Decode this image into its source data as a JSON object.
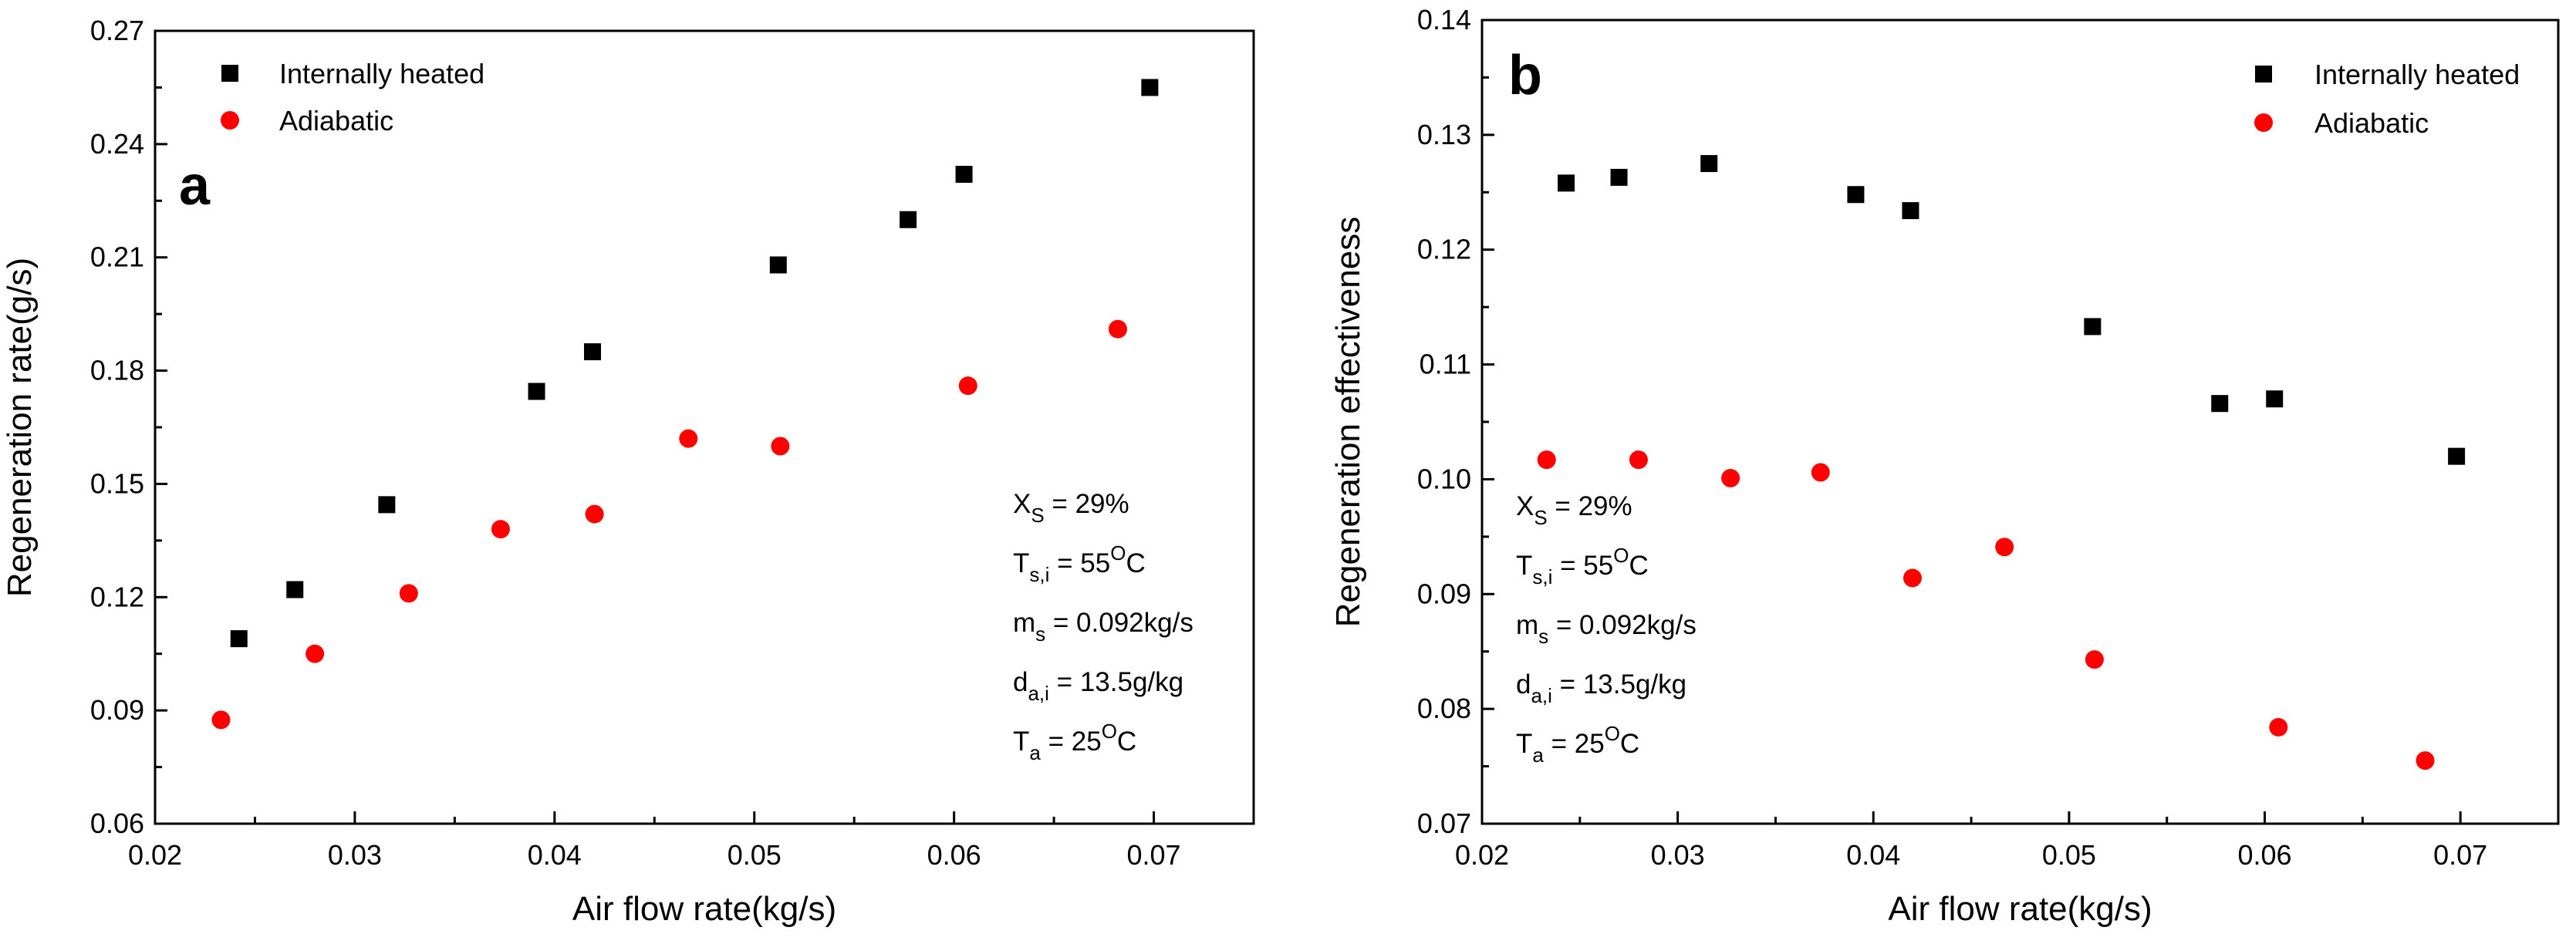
{
  "colors": {
    "internally_heated": "#000000",
    "adiabatic": "#ff0000"
  },
  "chart_data": [
    {
      "type": "scatter",
      "panel_label": "a",
      "xlabel": "Air flow rate(kg/s)",
      "ylabel": "Regeneration rate(g/s)",
      "xlim": [
        0.02,
        0.075
      ],
      "ylim": [
        0.06,
        0.27
      ],
      "xticks": [
        "0.02",
        "0.03",
        "0.04",
        "0.05",
        "0.06",
        "0.07"
      ],
      "yticks": [
        "0.06",
        "0.09",
        "0.12",
        "0.15",
        "0.18",
        "0.21",
        "0.24",
        "0.27"
      ],
      "legend_position": "top-left",
      "series": [
        {
          "name": "Internally heated",
          "marker": "square",
          "color": "#000000",
          "x": [
            0.0242,
            0.027,
            0.0316,
            0.0391,
            0.0419,
            0.0512,
            0.0577,
            0.0605,
            0.0698
          ],
          "y": [
            0.109,
            0.122,
            0.1445,
            0.1745,
            0.185,
            0.208,
            0.22,
            0.232,
            0.255
          ]
        },
        {
          "name": "Adiabatic",
          "marker": "circle",
          "color": "#ff0000",
          "x": [
            0.0233,
            0.028,
            0.0327,
            0.0373,
            0.042,
            0.0467,
            0.0513,
            0.0607,
            0.0682
          ],
          "y": [
            0.0875,
            0.105,
            0.121,
            0.138,
            0.142,
            0.162,
            0.16,
            0.176,
            0.191
          ]
        }
      ],
      "annotations": [
        {
          "main": "X",
          "sub": "S",
          "tail": " = 29%"
        },
        {
          "main": "T",
          "sub": "s,i",
          "tail": " = 55",
          "sup": "O",
          "tail2": "C"
        },
        {
          "main": "m",
          "sub": "s",
          "tail": "  = 0.092kg/s"
        },
        {
          "main": "d",
          "sub": "a,i",
          "tail": " = 13.5g/kg"
        },
        {
          "main": "T",
          "sub": "a",
          "tail": "   = 25",
          "sup": "O",
          "tail2": "C"
        }
      ]
    },
    {
      "type": "scatter",
      "panel_label": "b",
      "xlabel": "Air flow rate(kg/s)",
      "ylabel": "Regeneration effectiveness",
      "xlim": [
        0.02,
        0.075
      ],
      "ylim": [
        0.07,
        0.14
      ],
      "xticks": [
        "0.02",
        "0.03",
        "0.04",
        "0.05",
        "0.06",
        "0.07"
      ],
      "yticks": [
        "0.07",
        "0.08",
        "0.09",
        "0.10",
        "0.11",
        "0.12",
        "0.13",
        "0.14"
      ],
      "legend_position": "top-right",
      "series": [
        {
          "name": "Internally heated",
          "marker": "square",
          "color": "#000000",
          "x": [
            0.0243,
            0.027,
            0.0316,
            0.0391,
            0.0419,
            0.0512,
            0.0577,
            0.0605,
            0.0698
          ],
          "y": [
            0.1258,
            0.1263,
            0.1275,
            0.1248,
            0.1234,
            0.1133,
            0.1066,
            0.107,
            0.102
          ]
        },
        {
          "name": "Adiabatic",
          "marker": "circle",
          "color": "#ff0000",
          "x": [
            0.0233,
            0.028,
            0.0327,
            0.0373,
            0.042,
            0.0467,
            0.0513,
            0.0607,
            0.0682
          ],
          "y": [
            0.1017,
            0.1017,
            0.1001,
            0.1006,
            0.0914,
            0.0941,
            0.0843,
            0.0784,
            0.0755
          ]
        }
      ],
      "annotations": [
        {
          "main": "X",
          "sub": "S",
          "tail": " = 29%"
        },
        {
          "main": "T",
          "sub": "s,i",
          "tail": " = 55",
          "sup": "O",
          "tail2": "C"
        },
        {
          "main": "m",
          "sub": "s",
          "tail": "  = 0.092kg/s"
        },
        {
          "main": "d",
          "sub": "a,i",
          "tail": " = 13.5g/kg"
        },
        {
          "main": "T",
          "sub": "a",
          "tail": "   = 25",
          "sup": "O",
          "tail2": "C"
        }
      ]
    }
  ]
}
